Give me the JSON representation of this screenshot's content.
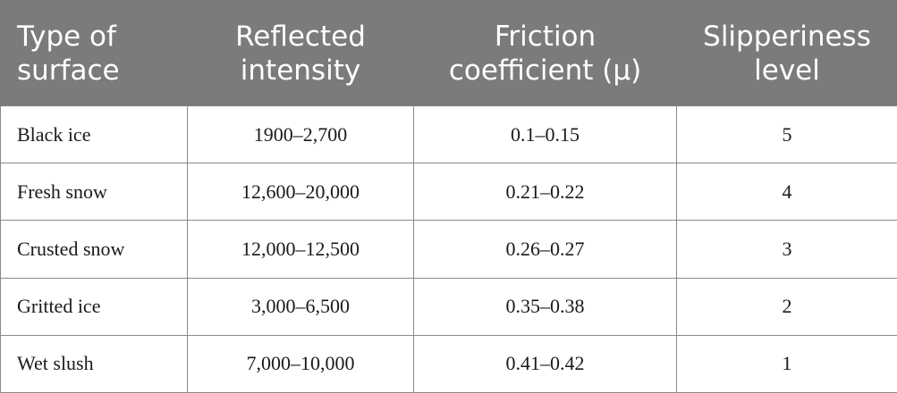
{
  "table": {
    "headers": [
      "Type of surface",
      "Reflected intensity",
      "Friction coefficient (μ)",
      "Slipperiness level"
    ],
    "rows": [
      [
        "Black ice",
        "1900–2,700",
        "0.1–0.15",
        "5"
      ],
      [
        "Fresh snow",
        "12,600–20,000",
        "0.21–0.22",
        "4"
      ],
      [
        "Crusted snow",
        "12,000–12,500",
        "0.26–0.27",
        "3"
      ],
      [
        "Gritted ice",
        "3,000–6,500",
        "0.35–0.38",
        "2"
      ],
      [
        "Wet slush",
        "7,000–10,000",
        "0.41–0.42",
        "1"
      ]
    ]
  }
}
